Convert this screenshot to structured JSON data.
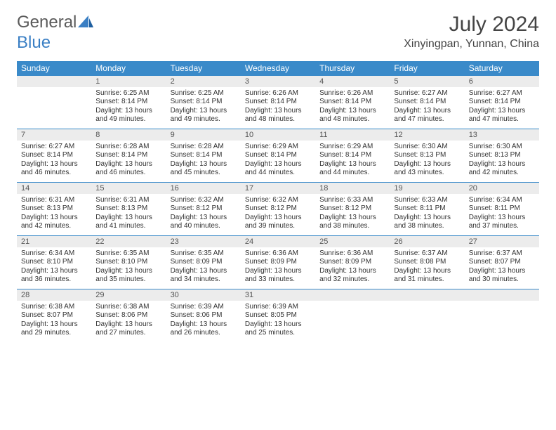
{
  "logo": {
    "general": "General",
    "blue": "Blue"
  },
  "title": "July 2024",
  "location": "Xinyingpan, Yunnan, China",
  "colors": {
    "header_bg": "#3a8ac9",
    "header_text": "#ffffff",
    "daynum_bg": "#ececec",
    "row_border": "#3a8ac9",
    "logo_accent": "#3a7fc4"
  },
  "weekdays": [
    "Sunday",
    "Monday",
    "Tuesday",
    "Wednesday",
    "Thursday",
    "Friday",
    "Saturday"
  ],
  "weeks": [
    [
      {
        "day": "",
        "lines": [
          "",
          "",
          "",
          ""
        ]
      },
      {
        "day": "1",
        "lines": [
          "Sunrise: 6:25 AM",
          "Sunset: 8:14 PM",
          "Daylight: 13 hours",
          "and 49 minutes."
        ]
      },
      {
        "day": "2",
        "lines": [
          "Sunrise: 6:25 AM",
          "Sunset: 8:14 PM",
          "Daylight: 13 hours",
          "and 49 minutes."
        ]
      },
      {
        "day": "3",
        "lines": [
          "Sunrise: 6:26 AM",
          "Sunset: 8:14 PM",
          "Daylight: 13 hours",
          "and 48 minutes."
        ]
      },
      {
        "day": "4",
        "lines": [
          "Sunrise: 6:26 AM",
          "Sunset: 8:14 PM",
          "Daylight: 13 hours",
          "and 48 minutes."
        ]
      },
      {
        "day": "5",
        "lines": [
          "Sunrise: 6:27 AM",
          "Sunset: 8:14 PM",
          "Daylight: 13 hours",
          "and 47 minutes."
        ]
      },
      {
        "day": "6",
        "lines": [
          "Sunrise: 6:27 AM",
          "Sunset: 8:14 PM",
          "Daylight: 13 hours",
          "and 47 minutes."
        ]
      }
    ],
    [
      {
        "day": "7",
        "lines": [
          "Sunrise: 6:27 AM",
          "Sunset: 8:14 PM",
          "Daylight: 13 hours",
          "and 46 minutes."
        ]
      },
      {
        "day": "8",
        "lines": [
          "Sunrise: 6:28 AM",
          "Sunset: 8:14 PM",
          "Daylight: 13 hours",
          "and 46 minutes."
        ]
      },
      {
        "day": "9",
        "lines": [
          "Sunrise: 6:28 AM",
          "Sunset: 8:14 PM",
          "Daylight: 13 hours",
          "and 45 minutes."
        ]
      },
      {
        "day": "10",
        "lines": [
          "Sunrise: 6:29 AM",
          "Sunset: 8:14 PM",
          "Daylight: 13 hours",
          "and 44 minutes."
        ]
      },
      {
        "day": "11",
        "lines": [
          "Sunrise: 6:29 AM",
          "Sunset: 8:14 PM",
          "Daylight: 13 hours",
          "and 44 minutes."
        ]
      },
      {
        "day": "12",
        "lines": [
          "Sunrise: 6:30 AM",
          "Sunset: 8:13 PM",
          "Daylight: 13 hours",
          "and 43 minutes."
        ]
      },
      {
        "day": "13",
        "lines": [
          "Sunrise: 6:30 AM",
          "Sunset: 8:13 PM",
          "Daylight: 13 hours",
          "and 42 minutes."
        ]
      }
    ],
    [
      {
        "day": "14",
        "lines": [
          "Sunrise: 6:31 AM",
          "Sunset: 8:13 PM",
          "Daylight: 13 hours",
          "and 42 minutes."
        ]
      },
      {
        "day": "15",
        "lines": [
          "Sunrise: 6:31 AM",
          "Sunset: 8:13 PM",
          "Daylight: 13 hours",
          "and 41 minutes."
        ]
      },
      {
        "day": "16",
        "lines": [
          "Sunrise: 6:32 AM",
          "Sunset: 8:12 PM",
          "Daylight: 13 hours",
          "and 40 minutes."
        ]
      },
      {
        "day": "17",
        "lines": [
          "Sunrise: 6:32 AM",
          "Sunset: 8:12 PM",
          "Daylight: 13 hours",
          "and 39 minutes."
        ]
      },
      {
        "day": "18",
        "lines": [
          "Sunrise: 6:33 AM",
          "Sunset: 8:12 PM",
          "Daylight: 13 hours",
          "and 38 minutes."
        ]
      },
      {
        "day": "19",
        "lines": [
          "Sunrise: 6:33 AM",
          "Sunset: 8:11 PM",
          "Daylight: 13 hours",
          "and 38 minutes."
        ]
      },
      {
        "day": "20",
        "lines": [
          "Sunrise: 6:34 AM",
          "Sunset: 8:11 PM",
          "Daylight: 13 hours",
          "and 37 minutes."
        ]
      }
    ],
    [
      {
        "day": "21",
        "lines": [
          "Sunrise: 6:34 AM",
          "Sunset: 8:10 PM",
          "Daylight: 13 hours",
          "and 36 minutes."
        ]
      },
      {
        "day": "22",
        "lines": [
          "Sunrise: 6:35 AM",
          "Sunset: 8:10 PM",
          "Daylight: 13 hours",
          "and 35 minutes."
        ]
      },
      {
        "day": "23",
        "lines": [
          "Sunrise: 6:35 AM",
          "Sunset: 8:09 PM",
          "Daylight: 13 hours",
          "and 34 minutes."
        ]
      },
      {
        "day": "24",
        "lines": [
          "Sunrise: 6:36 AM",
          "Sunset: 8:09 PM",
          "Daylight: 13 hours",
          "and 33 minutes."
        ]
      },
      {
        "day": "25",
        "lines": [
          "Sunrise: 6:36 AM",
          "Sunset: 8:09 PM",
          "Daylight: 13 hours",
          "and 32 minutes."
        ]
      },
      {
        "day": "26",
        "lines": [
          "Sunrise: 6:37 AM",
          "Sunset: 8:08 PM",
          "Daylight: 13 hours",
          "and 31 minutes."
        ]
      },
      {
        "day": "27",
        "lines": [
          "Sunrise: 6:37 AM",
          "Sunset: 8:07 PM",
          "Daylight: 13 hours",
          "and 30 minutes."
        ]
      }
    ],
    [
      {
        "day": "28",
        "lines": [
          "Sunrise: 6:38 AM",
          "Sunset: 8:07 PM",
          "Daylight: 13 hours",
          "and 29 minutes."
        ]
      },
      {
        "day": "29",
        "lines": [
          "Sunrise: 6:38 AM",
          "Sunset: 8:06 PM",
          "Daylight: 13 hours",
          "and 27 minutes."
        ]
      },
      {
        "day": "30",
        "lines": [
          "Sunrise: 6:39 AM",
          "Sunset: 8:06 PM",
          "Daylight: 13 hours",
          "and 26 minutes."
        ]
      },
      {
        "day": "31",
        "lines": [
          "Sunrise: 6:39 AM",
          "Sunset: 8:05 PM",
          "Daylight: 13 hours",
          "and 25 minutes."
        ]
      },
      {
        "day": "",
        "lines": [
          "",
          "",
          "",
          ""
        ]
      },
      {
        "day": "",
        "lines": [
          "",
          "",
          "",
          ""
        ]
      },
      {
        "day": "",
        "lines": [
          "",
          "",
          "",
          ""
        ]
      }
    ]
  ]
}
